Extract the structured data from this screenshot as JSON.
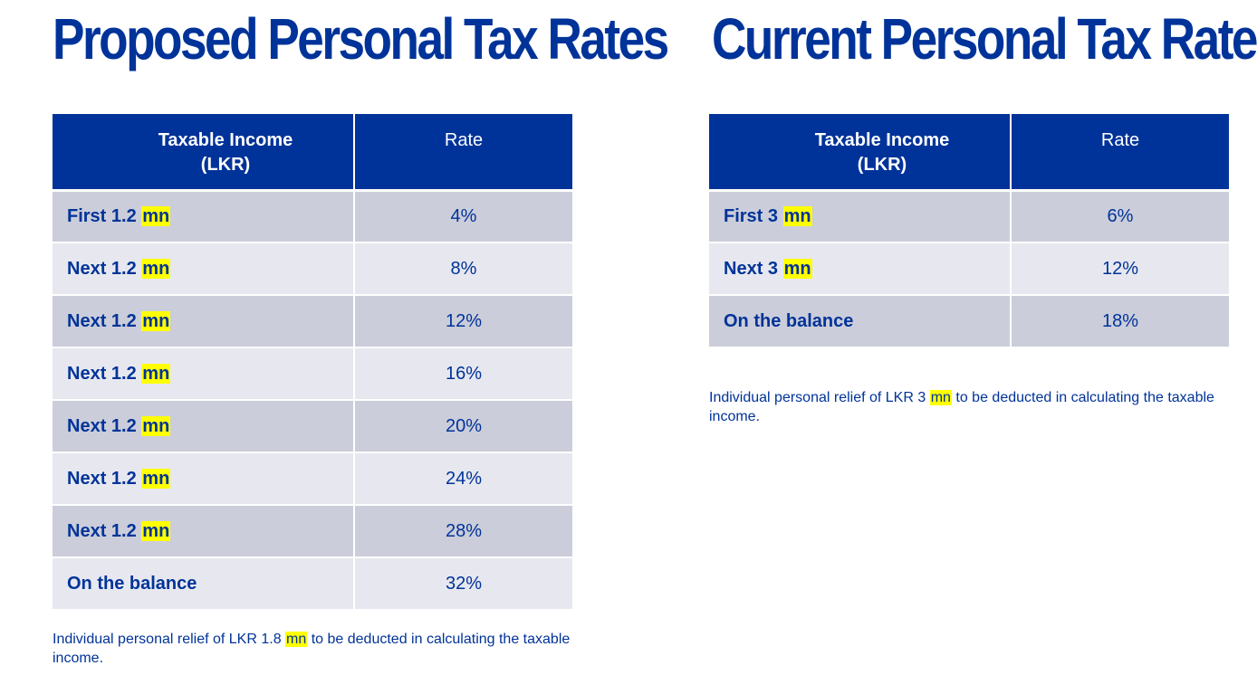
{
  "proposed": {
    "title": "Proposed Personal Tax Rates",
    "header": {
      "income_line1": "Taxable Income",
      "income_line2": "(LKR)",
      "rate": "Rate"
    },
    "rows": [
      {
        "prefix": "First 1.2",
        "unit": "mn",
        "rate": "4%"
      },
      {
        "prefix": "Next 1.2",
        "unit": "mn",
        "rate": "8%"
      },
      {
        "prefix": "Next 1.2",
        "unit": "mn",
        "rate": "12%"
      },
      {
        "prefix": "Next 1.2",
        "unit": "mn",
        "rate": "16%"
      },
      {
        "prefix": "Next 1.2",
        "unit": "mn",
        "rate": "20%"
      },
      {
        "prefix": "Next 1.2",
        "unit": "mn",
        "rate": "24%"
      },
      {
        "prefix": "Next 1.2",
        "unit": "mn",
        "rate": "28%"
      },
      {
        "prefix": "On the balance",
        "unit": "",
        "rate": "32%"
      }
    ],
    "note": {
      "before": "Individual personal relief of LKR 1.8 ",
      "highlight": "mn",
      "after": " to be deducted in calculating the taxable income."
    }
  },
  "current": {
    "title": "Current Personal Tax Rates",
    "header": {
      "income_line1": "Taxable Income",
      "income_line2": "(LKR)",
      "rate": "Rate"
    },
    "rows": [
      {
        "prefix": "First 3",
        "unit": "mn",
        "rate": "6%"
      },
      {
        "prefix": "Next 3",
        "unit": "mn",
        "rate": "12%"
      },
      {
        "prefix": "On the balance",
        "unit": "",
        "rate": "18%"
      }
    ],
    "note": {
      "before": "Individual personal relief of LKR 3 ",
      "highlight": "mn",
      "after": " to be deducted in calculating the taxable income."
    }
  },
  "colors": {
    "brand_blue": "#003399",
    "row_dark": "#cbcdda",
    "row_light": "#e7e8ef",
    "highlight": "#ffff00"
  }
}
